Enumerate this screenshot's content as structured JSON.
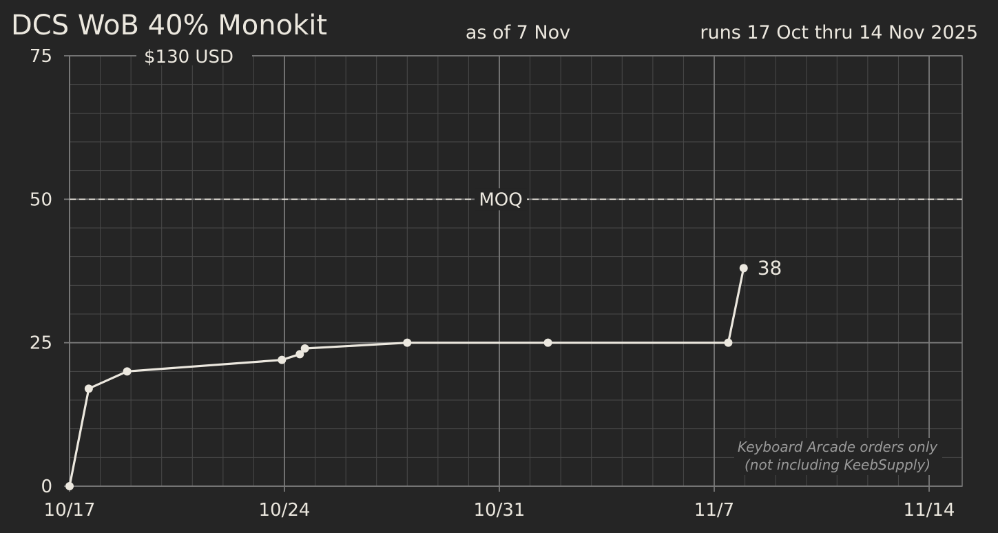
{
  "header": {
    "title": "DCS WoB 40% Monokit",
    "as_of": "as of 7 Nov",
    "runs": "runs 17 Oct thru 14 Nov 2025"
  },
  "colors": {
    "background": "#252525",
    "foreground": "#ece8df",
    "grid_minor": "#4a4a4a",
    "grid_major": "#7a7a7a",
    "note": "#9a9a9a"
  },
  "chart_data": {
    "type": "line",
    "x_axis": {
      "type": "date",
      "range": [
        "2025-10-17",
        "2025-11-14"
      ],
      "tick_values": [
        "2025-10-17",
        "2025-10-24",
        "2025-10-31",
        "2025-11-07",
        "2025-11-14"
      ],
      "tick_labels": [
        "10/17",
        "10/24",
        "10/31",
        "11/7",
        "11/14"
      ],
      "minor_grid": "daily"
    },
    "y_axis": {
      "range": [
        0,
        75
      ],
      "tick_values": [
        0,
        25,
        50,
        75
      ],
      "tick_labels": [
        "0",
        "25",
        "50",
        "75"
      ],
      "minor_step": 5
    },
    "grid": true,
    "series": [
      {
        "points": [
          {
            "x": "2025-10-17T00:00",
            "y": 0
          },
          {
            "x": "2025-10-17T15:00",
            "y": 17
          },
          {
            "x": "2025-10-18T21:00",
            "y": 20
          },
          {
            "x": "2025-10-23T22:00",
            "y": 22
          },
          {
            "x": "2025-10-24T12:00",
            "y": 23
          },
          {
            "x": "2025-10-24T16:00",
            "y": 24
          },
          {
            "x": "2025-10-28T00:00",
            "y": 25
          },
          {
            "x": "2025-11-01T14:00",
            "y": 25
          },
          {
            "x": "2025-11-07T11:00",
            "y": 25
          },
          {
            "x": "2025-11-07T23:00",
            "y": 38
          }
        ]
      }
    ],
    "reference_line": {
      "y": 50,
      "label": "MOQ",
      "style": "dashed"
    },
    "annotations": {
      "price": "$130 USD",
      "last_value": "38",
      "note_line1": "Keyboard Arcade orders only",
      "note_line2": "(not including KeebSupply)"
    }
  }
}
